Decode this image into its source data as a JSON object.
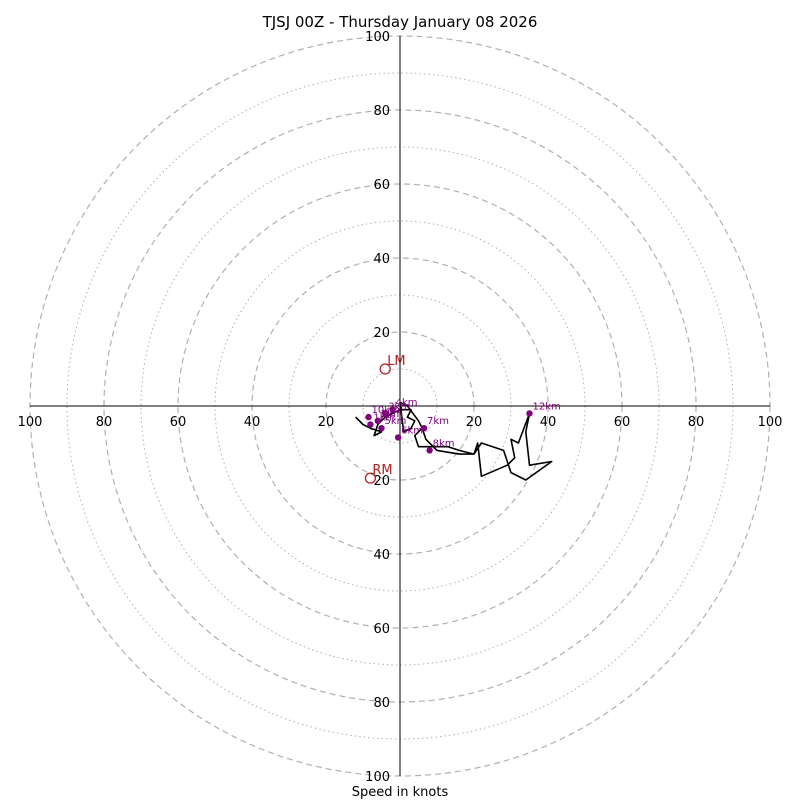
{
  "chart_data": {
    "type": "hodograph",
    "title": "TJSJ 00Z - Thursday January 08 2026",
    "xlabel": "Speed in knots",
    "range": [
      -100,
      100
    ],
    "major_rings": [
      20,
      40,
      60,
      80,
      100
    ],
    "minor_rings": [
      10,
      30,
      50,
      70,
      90
    ],
    "axis_ticks": {
      "right": [
        "20",
        "40",
        "60",
        "80",
        "100"
      ],
      "left": [
        "20",
        "40",
        "60",
        "80",
        "100"
      ],
      "up": [
        "20",
        "40",
        "60",
        "80",
        "100"
      ],
      "down": [
        "20",
        "40",
        "60",
        "80",
        "100"
      ]
    },
    "hodograph_trace": [
      [
        -12,
        -3
      ],
      [
        -10,
        -5
      ],
      [
        -8,
        -6
      ],
      [
        -5,
        -7
      ],
      [
        -7,
        -8
      ],
      [
        -6,
        -5
      ],
      [
        -4,
        -3
      ],
      [
        -2,
        -2
      ],
      [
        0,
        -1
      ],
      [
        3,
        -1
      ],
      [
        2,
        -3
      ],
      [
        4,
        -4
      ],
      [
        3,
        -6
      ],
      [
        1,
        -7
      ],
      [
        0,
        1
      ],
      [
        2,
        0
      ],
      [
        5,
        -4
      ],
      [
        6,
        -6
      ],
      [
        4,
        -8
      ],
      [
        5,
        -11
      ],
      [
        13,
        -11
      ],
      [
        16,
        -12
      ],
      [
        20,
        -13
      ],
      [
        21,
        -10
      ],
      [
        22,
        -19
      ],
      [
        29,
        -16
      ],
      [
        31,
        -14
      ],
      [
        30,
        -9
      ],
      [
        32,
        -10
      ],
      [
        35,
        -2
      ],
      [
        34,
        -7
      ],
      [
        35,
        -16
      ],
      [
        41,
        -15
      ],
      [
        34,
        -20
      ],
      [
        30,
        -18
      ],
      [
        28,
        -12
      ],
      [
        22,
        -10
      ],
      [
        20,
        -13
      ],
      [
        16,
        -13
      ],
      [
        10,
        -12
      ],
      [
        7,
        -9
      ],
      [
        6,
        -6
      ]
    ],
    "height_markers": [
      {
        "label": "4km",
        "u": -2,
        "v": -1
      },
      {
        "label": "7km",
        "u": 6.5,
        "v": -6
      },
      {
        "label": "8km",
        "u": 8,
        "v": -12
      },
      {
        "label": "6km",
        "u": -0.5,
        "v": -8.5
      },
      {
        "label": "12km",
        "u": 35,
        "v": -2
      },
      {
        "label": "10km",
        "u": -8.5,
        "v": -3
      },
      {
        "label": "2km",
        "u": -6,
        "v": -4
      },
      {
        "label": "1km",
        "u": -8,
        "v": -5
      },
      {
        "label": "5km",
        "u": -5,
        "v": -6
      },
      {
        "label": "3km",
        "u": -4,
        "v": -2
      }
    ],
    "storm_motion": [
      {
        "label": "LM",
        "u": -4,
        "v": 10
      },
      {
        "label": "RM",
        "u": -8,
        "v": -19.5
      }
    ]
  },
  "colors": {
    "trace": "#000000",
    "markers": "#800080",
    "storm_motion": "#b22222",
    "grid": "#b0b0b0"
  }
}
